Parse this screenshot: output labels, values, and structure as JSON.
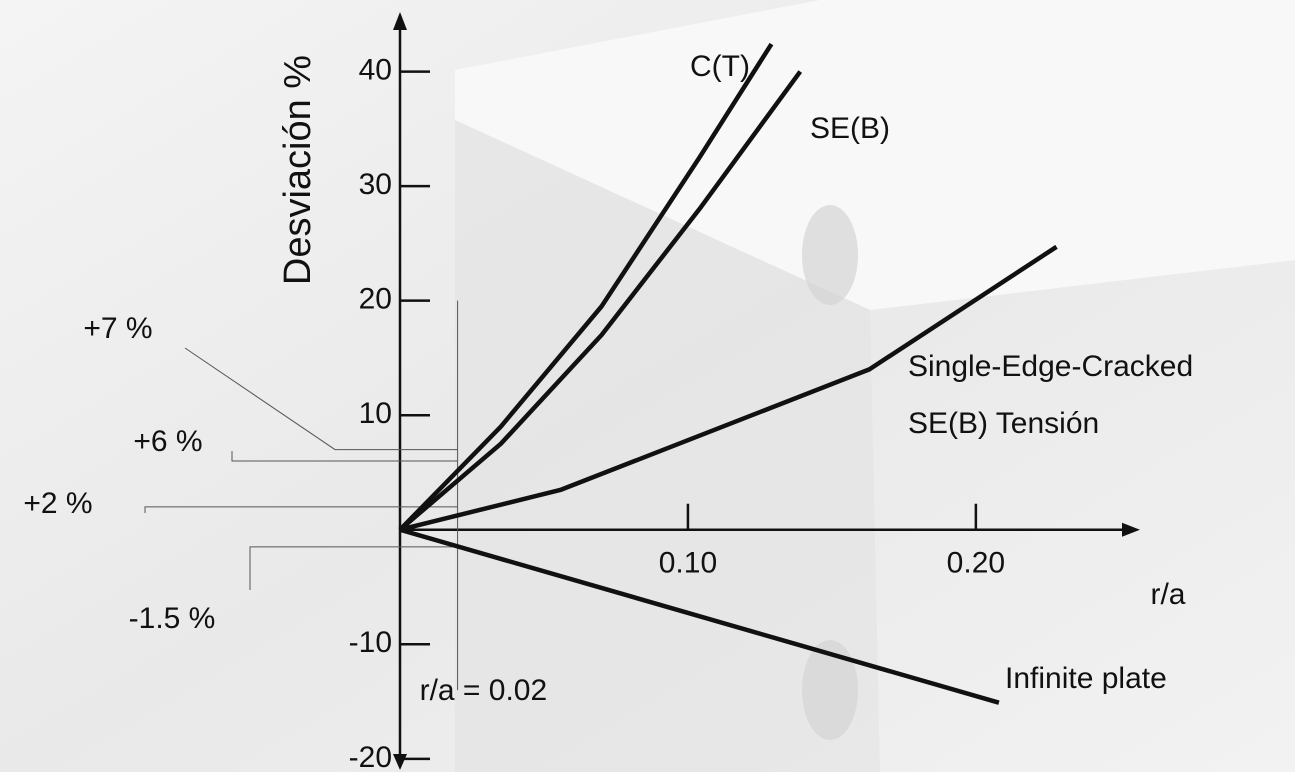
{
  "chart_data": {
    "type": "line",
    "y_label": "Desviación %",
    "x_label": "r/a",
    "xlim": [
      0,
      0.257
    ],
    "ylim": [
      -20.8,
      45.2
    ],
    "xticks": [
      {
        "value": 0.1,
        "label": "0.10"
      },
      {
        "value": 0.2,
        "label": "0.20"
      }
    ],
    "yticks": [
      -20,
      -10,
      10,
      20,
      30,
      40
    ],
    "series": [
      {
        "name": "C(T)",
        "color": "#111111",
        "x": [
          0,
          0.035,
          0.07,
          0.104,
          0.129
        ],
        "values": [
          0,
          9,
          19.5,
          32.5,
          42.4
        ]
      },
      {
        "name": "SE(B)",
        "color": "#111111",
        "x": [
          0,
          0.035,
          0.07,
          0.104,
          0.139
        ],
        "values": [
          0,
          7.5,
          17,
          28,
          40
        ]
      },
      {
        "name": "Single-Edge-Cracked\nSE(B) Tensión",
        "color": "#111111",
        "x": [
          0,
          0.056,
          0.163,
          0.228
        ],
        "values": [
          0,
          3.5,
          14,
          24.7
        ]
      },
      {
        "name": "Infinite plate",
        "color": "#111111",
        "x": [
          0,
          0.208
        ],
        "values": [
          0,
          -15.1
        ]
      }
    ],
    "reference_x": {
      "value": 0.02,
      "label": "r/a = 0.02"
    },
    "annotations": [
      {
        "text": "+7 %",
        "y": 7
      },
      {
        "text": "+6 %",
        "y": 6
      },
      {
        "text": "+2 %",
        "y": 2
      },
      {
        "text": "-1.5 %",
        "y": -1.5
      }
    ]
  }
}
